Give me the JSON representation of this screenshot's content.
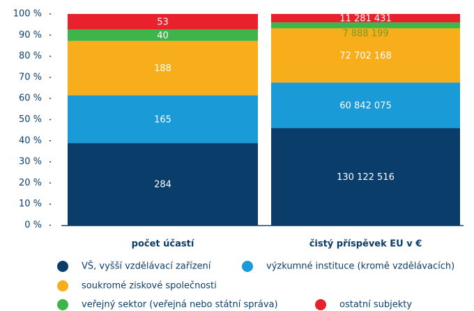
{
  "chart_data": {
    "type": "stacked_bar_100",
    "categories": [
      "počet účastí",
      "čistý příspěvek EU v €"
    ],
    "series": [
      {
        "name": "VŠ, vyšší vzdělávací zařízení",
        "color": "#0b3d6b",
        "values": [
          284,
          130122516
        ],
        "value_labels": [
          "284",
          "130 122 516"
        ]
      },
      {
        "name": "výzkumné instituce (kromě vzdělávacích)",
        "color": "#1a9ad6",
        "values": [
          165,
          60842075
        ],
        "value_labels": [
          "165",
          "60 842 075"
        ]
      },
      {
        "name": "soukromé ziskové společnosti",
        "color": "#f8ae1a",
        "values": [
          188,
          72702168
        ],
        "value_labels": [
          "188",
          "72 702 168"
        ]
      },
      {
        "name": "veřejný sektor (veřejná nebo státní správa)",
        "color": "#3db54a",
        "values": [
          40,
          7888199
        ],
        "value_labels": [
          "40",
          "7 888 199"
        ]
      },
      {
        "name": "ostatní subjekty",
        "color": "#e8212c",
        "values": [
          53,
          11281431
        ],
        "value_labels": [
          "53",
          "11 281 431"
        ]
      }
    ],
    "ylim": [
      0,
      100
    ],
    "yticks": [
      {
        "value": 0,
        "label": "0 %"
      },
      {
        "value": 10,
        "label": "10 %"
      },
      {
        "value": 20,
        "label": "20 %"
      },
      {
        "value": 30,
        "label": "30 %"
      },
      {
        "value": 40,
        "label": "40 %"
      },
      {
        "value": 50,
        "label": "50 %"
      },
      {
        "value": 60,
        "label": "60 %"
      },
      {
        "value": 70,
        "label": "70 %"
      },
      {
        "value": 80,
        "label": "80 %"
      },
      {
        "value": 90,
        "label": "90 %"
      },
      {
        "value": 100,
        "label": "100 %"
      }
    ]
  }
}
